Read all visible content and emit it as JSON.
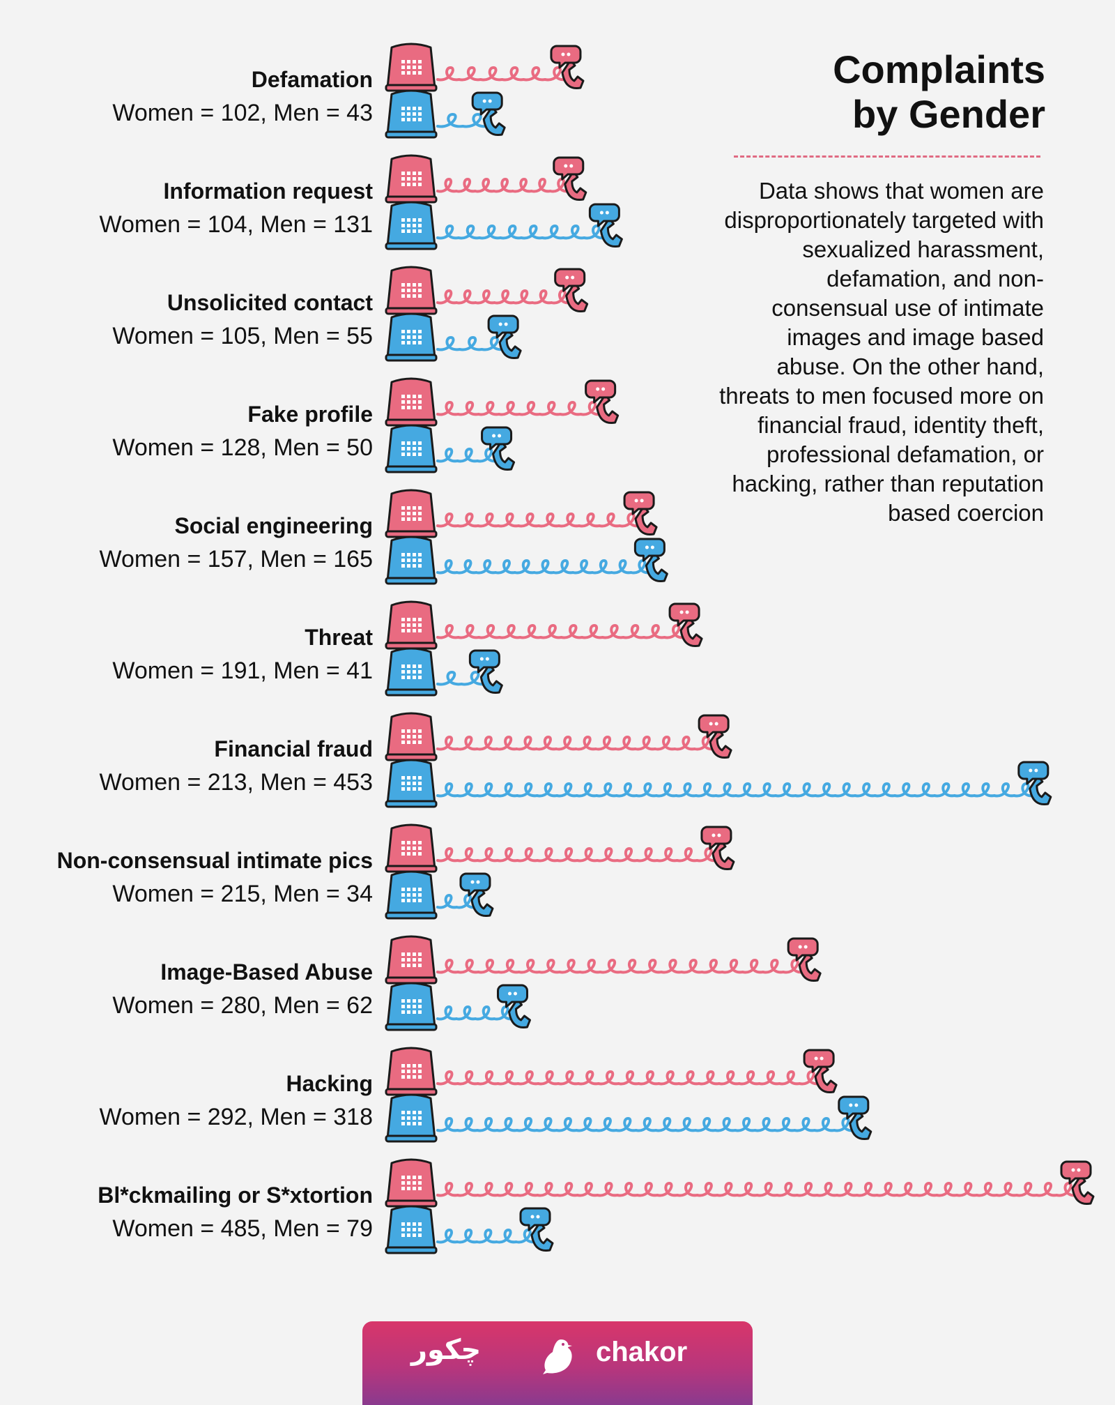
{
  "header": {
    "title_line1": "Complaints",
    "title_line2": "by Gender",
    "description": "Data shows that women are disproportionately targeted with sexualized harassment, defamation, and non-consensual use of intimate images and image based abuse. On the other hand, threats to men focused more on financial fraud, identity theft, professional defamation, or hacking, rather than reputation based coercion"
  },
  "footer": {
    "brand": "chakor",
    "brand_urdu": "چکور",
    "logo_icon": "bird-icon"
  },
  "colors": {
    "women": "#e96b81",
    "men": "#45a9e1",
    "outline": "#1a1a1a",
    "divider": "#e06a82"
  },
  "chart_data": {
    "type": "bar",
    "title": "Complaints by Gender",
    "categories": [
      "Defamation",
      "Information request",
      "Unsolicited contact",
      "Fake profile",
      "Social engineering",
      "Threat",
      "Financial fraud",
      "Non-consensual intimate pics",
      "Image-Based Abuse",
      "Hacking",
      "Bl*ckmailing or S*xtortion"
    ],
    "value_labels": [
      "Women = 102, Men = 43",
      "Women = 104, Men = 131",
      "Women = 105, Men = 55",
      "Women = 128, Men = 50",
      "Women = 157, Men = 165",
      "Women = 191, Men = 41",
      "Women = 213, Men = 453",
      "Women = 215, Men = 34",
      "Women = 280, Men = 62",
      "Women = 292, Men = 318",
      "Women = 485, Men = 79"
    ],
    "series": [
      {
        "name": "Women",
        "values": [
          102,
          104,
          105,
          128,
          157,
          191,
          213,
          215,
          280,
          292,
          485
        ]
      },
      {
        "name": "Men",
        "values": [
          43,
          131,
          55,
          50,
          165,
          41,
          453,
          34,
          62,
          318,
          79
        ]
      }
    ],
    "xlim": [
      0,
      485
    ],
    "bar_style": "telephone-cord",
    "icons": [
      "telephone-base-icon",
      "telephone-handset-icon"
    ]
  }
}
